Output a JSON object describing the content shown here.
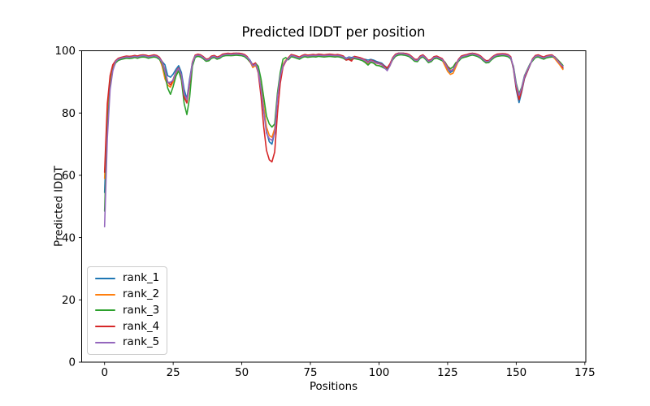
{
  "chart_data": {
    "type": "line",
    "title": "Predicted lDDT per position",
    "xlabel": "Positions",
    "ylabel": "Predicted lDDT",
    "xlim": [
      -8.35,
      175.35
    ],
    "ylim": [
      0,
      100
    ],
    "xticks": [
      0,
      25,
      50,
      75,
      100,
      125,
      150,
      175
    ],
    "yticks": [
      0,
      20,
      40,
      60,
      80,
      100
    ],
    "grid": false,
    "legend_position": "lower left",
    "x_start": 0,
    "x_step": 1,
    "series": [
      {
        "name": "rank_1",
        "color": "#1f77b4",
        "values": [
          54.5,
          79,
          90.5,
          95,
          96.7,
          97.5,
          97.8,
          98,
          98.2,
          98.1,
          98.2,
          98.4,
          98.2,
          98.5,
          98.6,
          98.5,
          98.2,
          98.4,
          98.6,
          98.4,
          97.8,
          96.5,
          95.5,
          92,
          91.5,
          92.5,
          94,
          95.2,
          93,
          87.5,
          84.5,
          91,
          96.2,
          98.5,
          98.8,
          98.6,
          98,
          97.2,
          97.4,
          98.2,
          98.4,
          97.9,
          98.2,
          98.8,
          99,
          99.1,
          99,
          99.1,
          99.2,
          99.1,
          99,
          98.7,
          98,
          97,
          95.4,
          95.9,
          93.5,
          88,
          81,
          74,
          70.8,
          70,
          74,
          85.5,
          92,
          95.3,
          96.8,
          97.7,
          98.7,
          98.5,
          98.2,
          97.9,
          98.4,
          98.7,
          98.5,
          98.6,
          98.7,
          98.6,
          98.8,
          98.7,
          98.6,
          98.7,
          98.8,
          98.7,
          98.6,
          98.7,
          98.5,
          98.2,
          97.6,
          98,
          97.8,
          98.1,
          97.9,
          97.7,
          97.4,
          97.2,
          97,
          97.2,
          97,
          96.6,
          96.3,
          96,
          95.2,
          94.5,
          95.7,
          97.7,
          98.8,
          99.2,
          99.2,
          99.2,
          99,
          98.7,
          98,
          97.2,
          97.1,
          98.2,
          98.6,
          97.8,
          96.8,
          97.1,
          98,
          98.2,
          97.8,
          97.4,
          95.8,
          94.2,
          93,
          93.6,
          95.3,
          97.2,
          98.2,
          98.5,
          98.7,
          99,
          99.2,
          99,
          98.7,
          98.2,
          97.4,
          96.7,
          96.8,
          97.7,
          98.4,
          98.8,
          98.9,
          99,
          98.9,
          98.7,
          98,
          94,
          87.5,
          83.3,
          86.8,
          91,
          93.2,
          95.3,
          97.4,
          98.4,
          98.6,
          98.2,
          97.9,
          98.3,
          98.5,
          98.6,
          98,
          97,
          95.9,
          94.3
        ]
      },
      {
        "name": "rank_2",
        "color": "#ff7f0e",
        "values": [
          59,
          81,
          91,
          95.2,
          96.3,
          97.1,
          97.4,
          97.6,
          97.8,
          97.7,
          97.8,
          98,
          97.8,
          98.1,
          98.2,
          98.1,
          97.8,
          98,
          98.2,
          98,
          97.4,
          95,
          91,
          89,
          88.3,
          90,
          92.5,
          94,
          91.5,
          85.5,
          84,
          90,
          95.8,
          98.1,
          98.4,
          98.2,
          97.6,
          96.8,
          97,
          97.8,
          98,
          97.5,
          97.8,
          98.4,
          98.6,
          98.7,
          98.6,
          98.7,
          98.8,
          98.7,
          98.6,
          98.3,
          97.6,
          96.6,
          94.6,
          95.3,
          93.2,
          88.5,
          82,
          75.5,
          72.8,
          72.2,
          75,
          86,
          92.3,
          95.6,
          97,
          97.3,
          98.3,
          98.1,
          97.8,
          97.5,
          98,
          98.3,
          98.1,
          98.2,
          98.3,
          98.2,
          98.4,
          98.3,
          98.2,
          98.3,
          98.4,
          98.3,
          98.2,
          98.3,
          98.1,
          97.8,
          97.2,
          97.6,
          97.4,
          97.7,
          97.5,
          97.3,
          97,
          96.5,
          95.8,
          96.4,
          96.1,
          95.4,
          95.2,
          95,
          94.4,
          94,
          95.2,
          97.3,
          98.4,
          98.8,
          98.9,
          98.8,
          98.6,
          98.3,
          97.6,
          96.8,
          96.7,
          97.8,
          98.2,
          97.4,
          96.4,
          96.7,
          97.6,
          97.8,
          97.4,
          97,
          95.2,
          93.4,
          92.4,
          92.8,
          94.8,
          96.8,
          97.8,
          98.1,
          98.3,
          98.6,
          98.8,
          98.6,
          98.3,
          97.8,
          97,
          96.3,
          96.4,
          97.3,
          98,
          98.4,
          98.5,
          98.6,
          98.5,
          98.3,
          97.6,
          94.5,
          88.7,
          85,
          87.8,
          91.7,
          93.6,
          95.6,
          97,
          98,
          98.2,
          97.8,
          97.5,
          97.9,
          98.1,
          98.2,
          97.5,
          96.4,
          95.3,
          94
        ]
      },
      {
        "name": "rank_3",
        "color": "#2ca02c",
        "values": [
          48.5,
          75,
          88.5,
          94,
          96.1,
          96.9,
          97.2,
          97.4,
          97.6,
          97.5,
          97.6,
          97.8,
          97.6,
          97.9,
          98,
          97.9,
          97.6,
          97.8,
          98,
          97.8,
          97.2,
          95.8,
          92.5,
          88,
          86,
          88.5,
          91.8,
          93.6,
          90.5,
          83,
          79.5,
          85,
          95,
          97.9,
          98.2,
          98,
          97.4,
          96.6,
          96.8,
          97.6,
          97.8,
          97.3,
          97.6,
          98.2,
          98.4,
          98.5,
          98.4,
          98.5,
          98.6,
          98.5,
          98.4,
          98.1,
          97.4,
          96.4,
          95.3,
          96,
          95,
          91,
          85,
          79,
          76.5,
          75.5,
          76.5,
          86.5,
          93,
          97.3,
          97.8,
          97.1,
          98.1,
          97.9,
          97.6,
          97.3,
          97.8,
          98.1,
          97.9,
          98,
          98.1,
          98,
          98.2,
          98.1,
          98,
          98.1,
          98.2,
          98.1,
          98,
          98.1,
          97.9,
          97.6,
          97,
          97.4,
          97.2,
          97.5,
          97.3,
          97.1,
          96.8,
          96.2,
          95.4,
          96.3,
          96,
          95.3,
          95.2,
          94.8,
          94.4,
          94.2,
          95.5,
          97.1,
          98.2,
          98.6,
          98.7,
          98.6,
          98.4,
          98.1,
          97.4,
          96.6,
          96.5,
          97.6,
          98,
          97.2,
          96.2,
          96.5,
          97.4,
          97.6,
          97.2,
          96.8,
          96.4,
          95,
          94.2,
          94.8,
          96.2,
          96.6,
          97.6,
          97.9,
          98.1,
          98.4,
          98.6,
          98.4,
          98.1,
          97.6,
          96.8,
          96.1,
          96.2,
          97.1,
          97.8,
          98.2,
          98.3,
          98.4,
          98.3,
          98.1,
          97.4,
          95,
          89.5,
          86.2,
          88.3,
          92,
          93.9,
          95.8,
          96.8,
          97.8,
          98,
          97.6,
          97.3,
          97.7,
          97.9,
          98,
          98.1,
          97.2,
          96.3,
          95.3
        ]
      },
      {
        "name": "rank_4",
        "color": "#d62728",
        "values": [
          61,
          83,
          92,
          95.5,
          96.8,
          97.6,
          97.9,
          98.1,
          98.3,
          98.2,
          98.3,
          98.5,
          98.3,
          98.6,
          98.7,
          98.6,
          98.3,
          98.5,
          98.7,
          98.5,
          97.9,
          96.4,
          93.8,
          90,
          89,
          90.8,
          93.2,
          94.5,
          92,
          85,
          83.2,
          89.5,
          96.3,
          98.6,
          98.9,
          98.7,
          98.1,
          97.3,
          97.5,
          98.3,
          98.5,
          98,
          98.3,
          98.9,
          99.1,
          99.2,
          99.1,
          99.2,
          99.2,
          99.2,
          99.1,
          98.8,
          98.1,
          96.5,
          95.6,
          96.1,
          92.8,
          85.5,
          75.5,
          68,
          65,
          64.3,
          67.5,
          80,
          89.5,
          94.8,
          96.5,
          97.8,
          98.8,
          98.6,
          98.3,
          98,
          98.5,
          98.8,
          98.6,
          98.7,
          98.8,
          98.7,
          98.9,
          98.8,
          98.7,
          98.8,
          98.9,
          98.8,
          98.7,
          98.8,
          98.6,
          98.3,
          97,
          97.2,
          96.7,
          98.2,
          98,
          97.8,
          97.5,
          97,
          96.4,
          97,
          96.7,
          96.2,
          96,
          95.7,
          95,
          94.5,
          95.8,
          97.8,
          98.9,
          99.2,
          99.2,
          99.2,
          99.1,
          98.8,
          98.1,
          97.3,
          97.2,
          98.3,
          98.7,
          97.9,
          96.9,
          97.2,
          98.1,
          98.3,
          97.9,
          97.5,
          96.2,
          94.8,
          93.6,
          94,
          95.7,
          97.3,
          98.3,
          98.6,
          98.8,
          99.1,
          99.2,
          99.1,
          98.8,
          98.3,
          97.5,
          96.8,
          96.9,
          97.8,
          98.5,
          98.9,
          99,
          99.1,
          99,
          98.8,
          98.1,
          94.3,
          88,
          84.3,
          87.2,
          91.3,
          93.3,
          95.4,
          97.5,
          98.5,
          98.7,
          98.3,
          98,
          98.4,
          98.6,
          98.7,
          98,
          97,
          96,
          94.6
        ]
      },
      {
        "name": "rank_5",
        "color": "#9467bd",
        "values": [
          43.5,
          72,
          87.5,
          93.5,
          96.5,
          97.3,
          97.6,
          97.8,
          98,
          97.9,
          98,
          98.2,
          98,
          98.3,
          98.4,
          98.3,
          98,
          98.2,
          98.4,
          98.2,
          97.6,
          96.2,
          93.5,
          89.8,
          89.9,
          90.5,
          93,
          94.3,
          92.2,
          86,
          84.3,
          90.2,
          96,
          98.3,
          98.6,
          98.4,
          97.8,
          97,
          97.2,
          98,
          98.2,
          97.7,
          98,
          98.6,
          98.8,
          98.9,
          98.8,
          98.9,
          99,
          98.9,
          98.8,
          98.5,
          97.8,
          96.8,
          95.1,
          95.7,
          93.4,
          87.8,
          80.5,
          73.5,
          71.8,
          71.2,
          73.5,
          85,
          91.8,
          95.2,
          96.7,
          97.5,
          98.5,
          98.3,
          98,
          97.7,
          98.2,
          98.5,
          98.3,
          98.4,
          98.5,
          98.4,
          98.6,
          98.5,
          98.4,
          98.5,
          98.6,
          98.5,
          98.4,
          98.5,
          98.3,
          98,
          97.4,
          97.8,
          97.6,
          97.9,
          97.7,
          97.5,
          97.2,
          96.8,
          96.2,
          96.8,
          96.5,
          96,
          95.8,
          95.5,
          94.5,
          93.6,
          95.2,
          97.5,
          98.6,
          99,
          99.1,
          99,
          98.8,
          98.5,
          97.8,
          97,
          96.9,
          98,
          98.4,
          97.6,
          96.6,
          96.9,
          97.8,
          98,
          97.6,
          97.2,
          96,
          94.4,
          93.5,
          93.9,
          95.5,
          97,
          98,
          98.3,
          98.5,
          98.8,
          99,
          98.8,
          98.5,
          98,
          97.2,
          96.5,
          96.6,
          97.5,
          98.2,
          98.6,
          98.7,
          98.8,
          98.7,
          98.5,
          97.8,
          94.7,
          89,
          85.7,
          88,
          91.8,
          93.7,
          95.6,
          97.2,
          98.2,
          98.4,
          98,
          97.7,
          98.1,
          98.3,
          98.4,
          97.9,
          96.9,
          95.8,
          95
        ]
      }
    ]
  }
}
